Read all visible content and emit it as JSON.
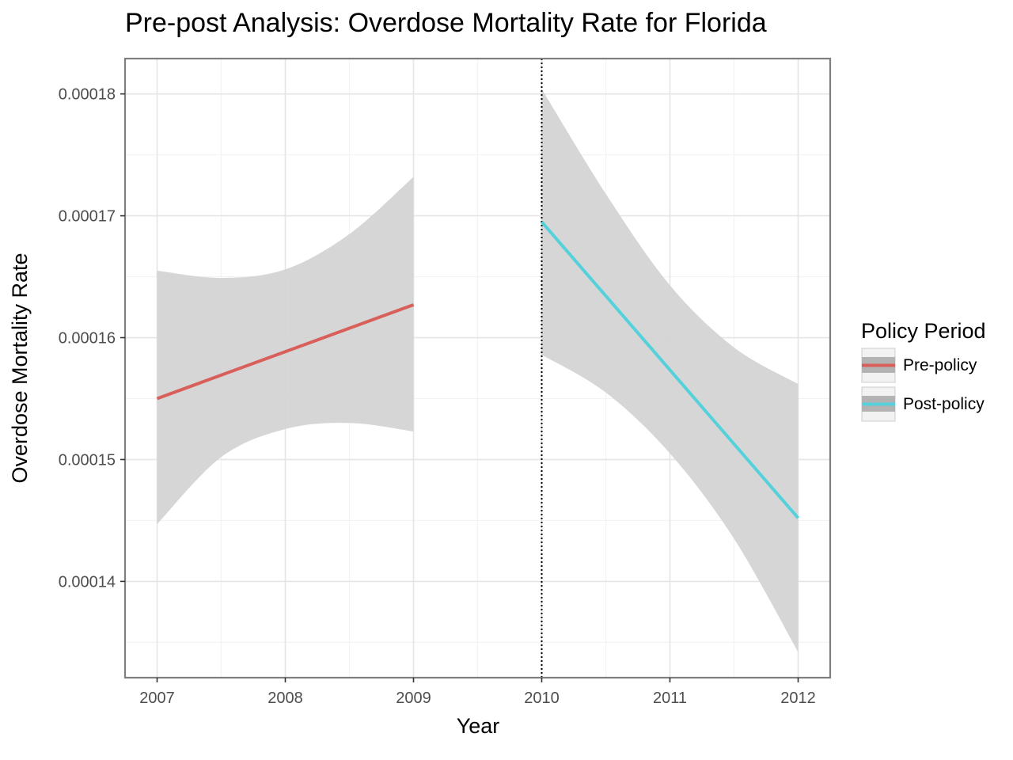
{
  "chart_data": {
    "type": "line",
    "title": "Pre-post Analysis: Overdose Mortality Rate for Florida",
    "xlabel": "Year",
    "ylabel": "Overdose Mortality Rate",
    "xlim": [
      2006.75,
      2012.25
    ],
    "ylim": [
      0.0001321,
      0.0001829
    ],
    "x_ticks": [
      2007,
      2008,
      2009,
      2010,
      2011,
      2012
    ],
    "x_tick_labels": [
      "2007",
      "2008",
      "2009",
      "2010",
      "2011",
      "2012"
    ],
    "y_ticks": [
      0.00014,
      0.00015,
      0.00016,
      0.00017,
      0.00018
    ],
    "y_tick_labels": [
      "0.00014",
      "0.00015",
      "0.00016",
      "0.00017",
      "0.00018"
    ],
    "grid": true,
    "policy_line": {
      "x": 2010,
      "style": "dotted"
    },
    "legend": {
      "title": "Policy Period",
      "position": "right",
      "entries": [
        "Pre-policy",
        "Post-policy"
      ]
    },
    "series": [
      {
        "name": "Pre-policy",
        "color": "#d95f5a",
        "x": [
          2007,
          2009
        ],
        "y": [
          0.000155,
          0.0001627
        ],
        "ci_x": [
          2007,
          2007.5,
          2008,
          2008.5,
          2009
        ],
        "ci_lower": [
          0.0001447,
          0.0001502,
          0.0001525,
          0.000153,
          0.0001523
        ],
        "ci_upper": [
          0.0001655,
          0.0001649,
          0.0001656,
          0.0001685,
          0.0001732
        ]
      },
      {
        "name": "Post-policy",
        "color": "#54d1da",
        "x": [
          2010,
          2012
        ],
        "y": [
          0.0001695,
          0.0001452
        ],
        "ci_x": [
          2010,
          2010.5,
          2011,
          2011.5,
          2012
        ],
        "ci_lower": [
          0.0001586,
          0.0001555,
          0.0001505,
          0.0001435,
          0.0001342
        ],
        "ci_upper": [
          0.0001804,
          0.0001718,
          0.0001643,
          0.0001592,
          0.0001562
        ]
      }
    ],
    "colors": {
      "ribbon": "#d3d3d3",
      "panel_border": "#7f7f7f",
      "grid_major": "#e5e5e5",
      "grid_minor": "#f3f3f3"
    }
  }
}
